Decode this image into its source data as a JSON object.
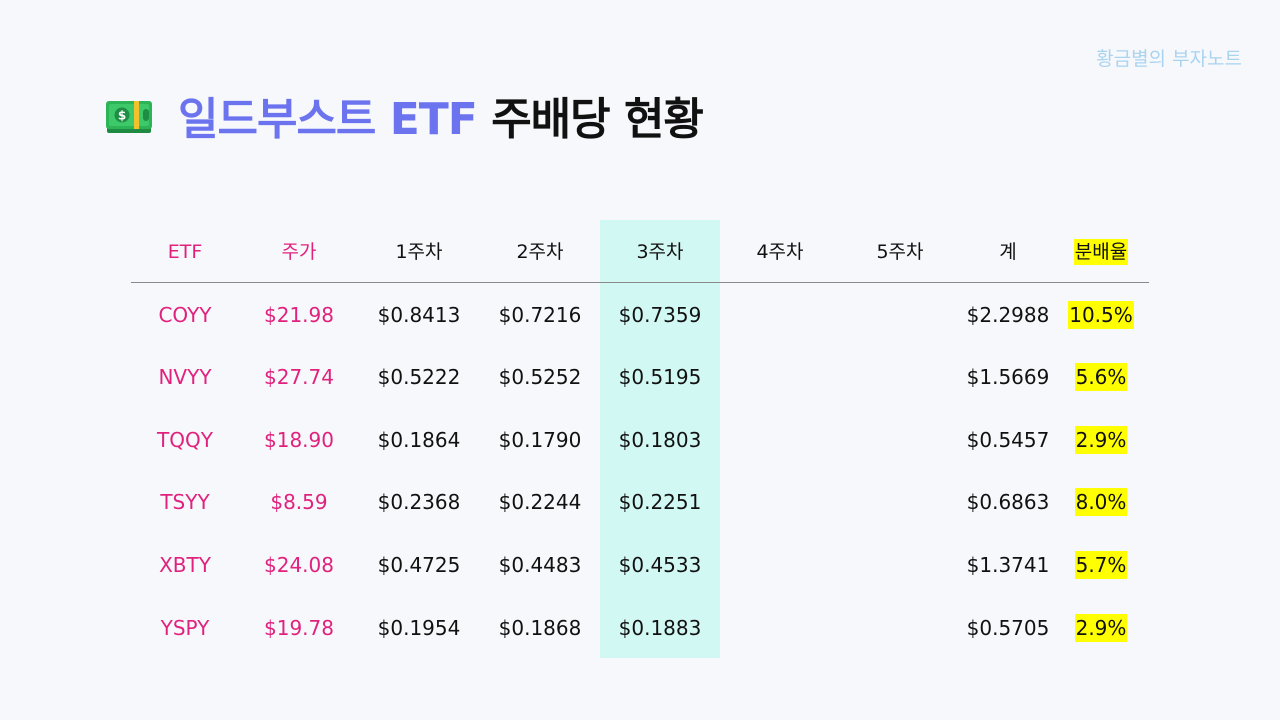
{
  "watermark": "황금별의 부자노트",
  "title": {
    "icon": "money-bill-icon",
    "accent_text": "일드부스트 ETF",
    "rest_text": "주배당 현황",
    "accent_color": "#6c73ee"
  },
  "table": {
    "headers": [
      "ETF",
      "주가",
      "1주차",
      "2주차",
      "3주차",
      "4주차",
      "5주차",
      "계",
      "분배율"
    ],
    "rows": [
      {
        "etf": "COYY",
        "price": "$21.98",
        "w1": "$0.8413",
        "w2": "$0.7216",
        "w3": "$0.7359",
        "w4": "",
        "w5": "",
        "total": "$2.2988",
        "yield": "10.5%"
      },
      {
        "etf": "NVYY",
        "price": "$27.74",
        "w1": "$0.5222",
        "w2": "$0.5252",
        "w3": "$0.5195",
        "w4": "",
        "w5": "",
        "total": "$1.5669",
        "yield": "5.6%"
      },
      {
        "etf": "TQQY",
        "price": "$18.90",
        "w1": "$0.1864",
        "w2": "$0.1790",
        "w3": "$0.1803",
        "w4": "",
        "w5": "",
        "total": "$0.5457",
        "yield": "2.9%"
      },
      {
        "etf": "TSYY",
        "price": "$8.59",
        "w1": "$0.2368",
        "w2": "$0.2244",
        "w3": "$0.2251",
        "w4": "",
        "w5": "",
        "total": "$0.6863",
        "yield": "8.0%"
      },
      {
        "etf": "XBTY",
        "price": "$24.08",
        "w1": "$0.4725",
        "w2": "$0.4483",
        "w3": "$0.4533",
        "w4": "",
        "w5": "",
        "total": "$1.3741",
        "yield": "5.7%"
      },
      {
        "etf": "YSPY",
        "price": "$19.78",
        "w1": "$0.1954",
        "w2": "$0.1868",
        "w3": "$0.1883",
        "w4": "",
        "w5": "",
        "total": "$0.5705",
        "yield": "2.9%"
      }
    ]
  },
  "colors": {
    "pink_text": "#e0227e",
    "highlight_column": "#d2f8f4",
    "yield_highlight": "#ffff00",
    "watermark": "#a9d4f0",
    "background": "#f7f8fb"
  }
}
